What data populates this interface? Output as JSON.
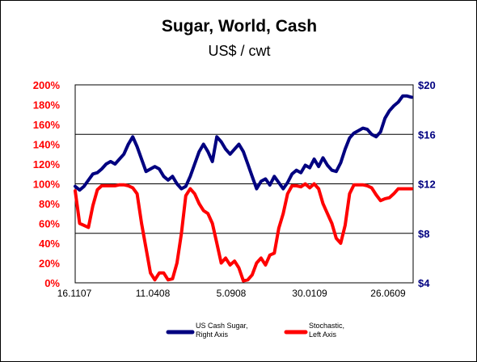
{
  "chart_data": {
    "type": "line",
    "title": "Sugar, World, Cash",
    "subtitle": "US$ / cwt",
    "x_ticks": [
      "16.1107",
      "11.0408",
      "5.0908",
      "30.0109",
      "26.0609"
    ],
    "y_left": {
      "ticks": [
        "0%",
        "20%",
        "40%",
        "60%",
        "80%",
        "100%",
        "120%",
        "140%",
        "160%",
        "180%",
        "200%"
      ],
      "range": [
        0,
        200
      ],
      "color": "#ff0000"
    },
    "y_right": {
      "ticks": [
        "$4",
        "$8",
        "$12",
        "$16",
        "$20"
      ],
      "range": [
        4,
        20
      ],
      "color": "#000080"
    },
    "grid": true,
    "legend_position": "bottom",
    "series": [
      {
        "name": "US Cash Sugar, Right Axis",
        "axis": "right",
        "color": "#000080",
        "values": [
          11.8,
          11.5,
          11.8,
          12.3,
          12.8,
          12.9,
          13.2,
          13.6,
          13.8,
          13.6,
          14.0,
          14.4,
          15.2,
          15.8,
          15.0,
          14.0,
          13.0,
          13.2,
          13.4,
          13.2,
          12.6,
          12.3,
          12.6,
          12.0,
          11.6,
          11.8,
          12.6,
          13.6,
          14.6,
          15.2,
          14.6,
          13.8,
          15.8,
          15.4,
          14.8,
          14.4,
          14.8,
          15.2,
          14.6,
          13.6,
          12.6,
          11.6,
          12.2,
          12.4,
          11.9,
          12.6,
          12.1,
          11.6,
          12.1,
          12.8,
          13.1,
          12.9,
          13.5,
          13.3,
          14.0,
          13.4,
          14.1,
          13.5,
          13.1,
          13.0,
          13.7,
          14.8,
          15.7,
          16.1,
          16.3,
          16.5,
          16.4,
          16.0,
          15.8,
          16.2,
          17.3,
          17.9,
          18.3,
          18.6,
          19.1,
          19.1,
          19.0
        ]
      },
      {
        "name": "Stochastic, Left Axis",
        "axis": "left",
        "color": "#ff0000",
        "values": [
          93,
          60,
          58,
          56,
          78,
          94,
          98,
          98,
          98,
          98,
          99,
          99,
          98,
          96,
          90,
          60,
          35,
          10,
          3,
          10,
          10,
          3,
          4,
          20,
          50,
          88,
          95,
          90,
          80,
          73,
          70,
          60,
          40,
          20,
          25,
          18,
          22,
          15,
          2,
          3,
          8,
          20,
          25,
          18,
          28,
          30,
          55,
          70,
          90,
          98,
          98,
          97,
          100,
          96,
          100,
          95,
          80,
          70,
          60,
          45,
          40,
          58,
          90,
          99,
          99,
          99,
          98,
          96,
          89,
          83,
          85,
          86,
          90,
          95,
          95,
          95,
          95
        ]
      }
    ]
  }
}
